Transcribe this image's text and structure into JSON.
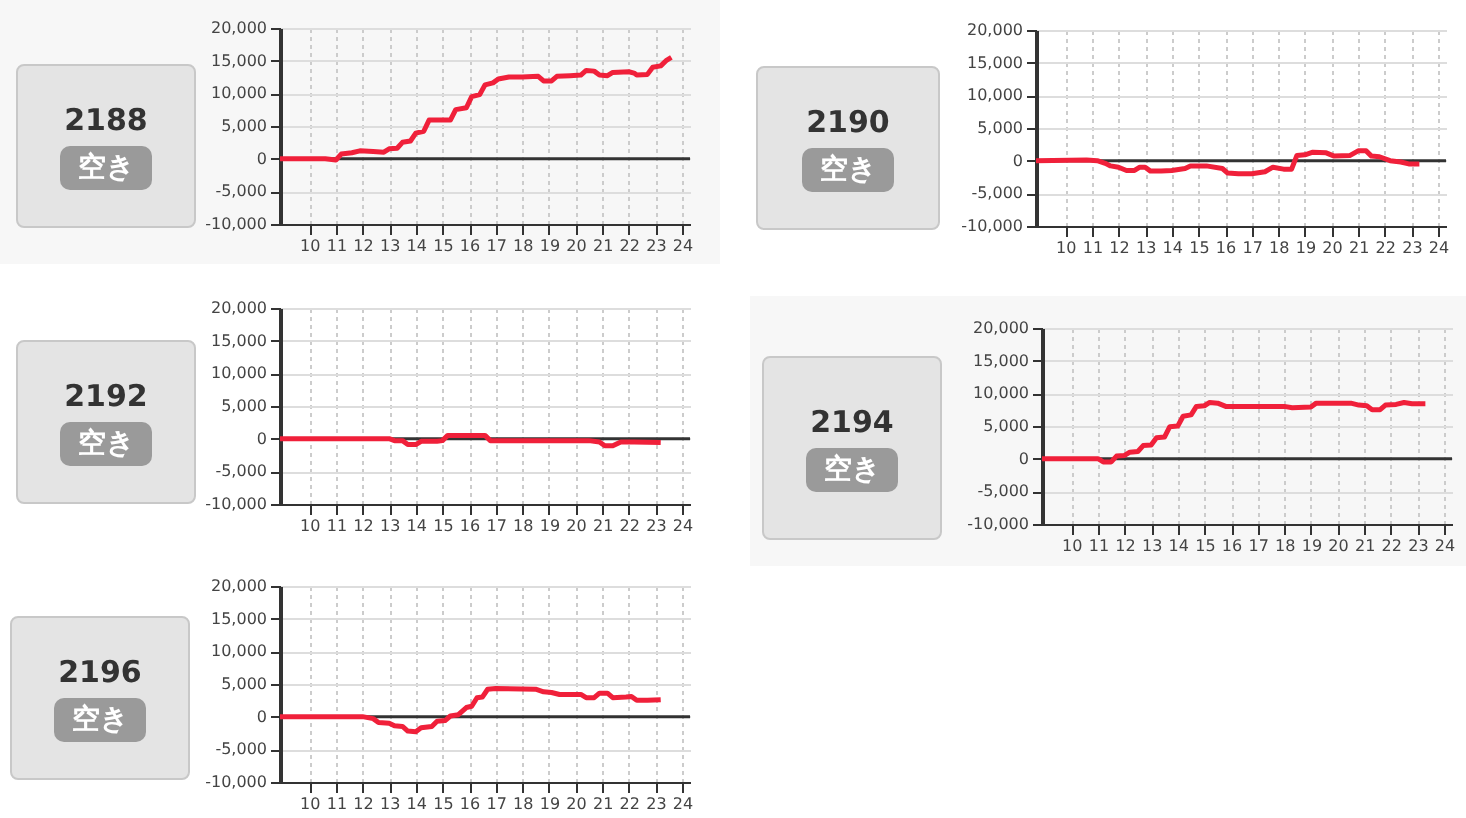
{
  "chart_data": [
    {
      "type": "line",
      "title": "2188",
      "subtitle": "空き",
      "xlim": [
        8.9,
        24.3
      ],
      "xticks": [
        10,
        11,
        12,
        13,
        14,
        15,
        16,
        17,
        18,
        19,
        20,
        21,
        22,
        23,
        24
      ],
      "ylim": [
        -10000,
        20000
      ],
      "yticks": [
        {
          "value": -10000,
          "label": "-10,000"
        },
        {
          "value": -5000,
          "label": "-5,000"
        },
        {
          "value": 0,
          "label": "0"
        },
        {
          "value": 5000,
          "label": "5,000"
        },
        {
          "value": 10000,
          "label": "10,000"
        },
        {
          "value": 15000,
          "label": "15,000"
        },
        {
          "value": 20000,
          "label": "20,000"
        }
      ],
      "grid": true,
      "ref_lines": [
        {
          "axis": "y",
          "value": 0,
          "color": "#333333"
        }
      ],
      "series": [
        {
          "color": "#f0203a",
          "x": [
            8.9,
            10.6,
            11.0,
            11.2,
            11.6,
            11.9,
            12.4,
            12.8,
            13.0,
            13.3,
            13.5,
            13.8,
            14.0,
            14.3,
            14.5,
            15.0,
            15.3,
            15.5,
            15.9,
            16.1,
            16.4,
            16.6,
            16.9,
            17.1,
            17.5,
            18.0,
            18.6,
            18.8,
            19.1,
            19.3,
            19.8,
            20.2,
            20.4,
            20.7,
            20.9,
            21.2,
            21.4,
            22.0,
            22.2,
            22.3,
            22.7,
            22.9,
            23.2,
            23.4,
            23.6
          ],
          "values": [
            0,
            0,
            -200,
            700,
            900,
            1200,
            1100,
            1000,
            1500,
            1600,
            2500,
            2700,
            3900,
            4200,
            5900,
            5900,
            5900,
            7500,
            7800,
            9500,
            9800,
            11300,
            11600,
            12200,
            12500,
            12500,
            12600,
            11900,
            11900,
            12600,
            12700,
            12800,
            13500,
            13400,
            12800,
            12700,
            13200,
            13300,
            13100,
            12800,
            12900,
            14000,
            14200,
            15000,
            15500
          ]
        }
      ]
    },
    {
      "type": "line",
      "title": "2190",
      "subtitle": "空き",
      "xlim": [
        8.9,
        24.3
      ],
      "xticks": [
        10,
        11,
        12,
        13,
        14,
        15,
        16,
        17,
        18,
        19,
        20,
        21,
        22,
        23,
        24
      ],
      "ylim": [
        -10000,
        20000
      ],
      "yticks": [
        {
          "value": -10000,
          "label": "-10,000"
        },
        {
          "value": -5000,
          "label": "-5,000"
        },
        {
          "value": 0,
          "label": "0"
        },
        {
          "value": 5000,
          "label": "5,000"
        },
        {
          "value": 10000,
          "label": "10,000"
        },
        {
          "value": 15000,
          "label": "15,000"
        },
        {
          "value": 20000,
          "label": "20,000"
        }
      ],
      "grid": true,
      "ref_lines": [
        {
          "axis": "y",
          "value": 0,
          "color": "#333333"
        }
      ],
      "series": [
        {
          "color": "#f0203a",
          "x": [
            8.9,
            10.8,
            11.2,
            11.5,
            11.7,
            12.0,
            12.3,
            12.6,
            12.8,
            13.0,
            13.2,
            13.6,
            14.0,
            14.5,
            14.7,
            15.3,
            15.9,
            16.1,
            16.5,
            17.0,
            17.5,
            17.8,
            18.2,
            18.5,
            18.7,
            19.0,
            19.3,
            19.8,
            20.1,
            20.7,
            21.0,
            21.3,
            21.5,
            21.8,
            22.2,
            22.6,
            22.9,
            23.3
          ],
          "values": [
            0,
            100,
            0,
            -400,
            -800,
            -1000,
            -1500,
            -1500,
            -1000,
            -1000,
            -1600,
            -1600,
            -1500,
            -1200,
            -800,
            -800,
            -1200,
            -1900,
            -2000,
            -2000,
            -1700,
            -1000,
            -1300,
            -1300,
            800,
            900,
            1300,
            1200,
            700,
            800,
            1500,
            1500,
            700,
            600,
            0,
            -200,
            -500,
            -500
          ]
        }
      ]
    },
    {
      "type": "line",
      "title": "2192",
      "subtitle": "空き",
      "xlim": [
        8.9,
        24.3
      ],
      "xticks": [
        10,
        11,
        12,
        13,
        14,
        15,
        16,
        17,
        18,
        19,
        20,
        21,
        22,
        23,
        24
      ],
      "ylim": [
        -10000,
        20000
      ],
      "yticks": [
        {
          "value": -10000,
          "label": "-10,000"
        },
        {
          "value": -5000,
          "label": "-5,000"
        },
        {
          "value": 0,
          "label": "0"
        },
        {
          "value": 5000,
          "label": "5,000"
        },
        {
          "value": 10000,
          "label": "10,000"
        },
        {
          "value": 15000,
          "label": "15,000"
        },
        {
          "value": 20000,
          "label": "20,000"
        }
      ],
      "grid": true,
      "ref_lines": [
        {
          "axis": "y",
          "value": 0,
          "color": "#333333"
        }
      ],
      "series": [
        {
          "color": "#f0203a",
          "x": [
            8.9,
            13.0,
            13.2,
            13.5,
            13.7,
            14.0,
            14.2,
            14.8,
            15.0,
            15.2,
            16.0,
            16.6,
            16.8,
            17.5,
            20.5,
            20.9,
            21.1,
            21.4,
            21.7,
            22.2,
            23.2
          ],
          "values": [
            0,
            0,
            -300,
            -300,
            -900,
            -900,
            -400,
            -400,
            -300,
            500,
            500,
            500,
            -300,
            -300,
            -300,
            -500,
            -1100,
            -1100,
            -500,
            -500,
            -600
          ]
        }
      ]
    },
    {
      "type": "line",
      "title": "2194",
      "subtitle": "空き",
      "xlim": [
        8.9,
        24.3
      ],
      "xticks": [
        10,
        11,
        12,
        13,
        14,
        15,
        16,
        17,
        18,
        19,
        20,
        21,
        22,
        23,
        24
      ],
      "ylim": [
        -10000,
        20000
      ],
      "yticks": [
        {
          "value": -10000,
          "label": "-10,000"
        },
        {
          "value": -5000,
          "label": "-5,000"
        },
        {
          "value": 0,
          "label": "0"
        },
        {
          "value": 5000,
          "label": "5,000"
        },
        {
          "value": 10000,
          "label": "10,000"
        },
        {
          "value": 15000,
          "label": "15,000"
        },
        {
          "value": 20000,
          "label": "20,000"
        }
      ],
      "grid": true,
      "ref_lines": [
        {
          "axis": "y",
          "value": 0,
          "color": "#333333"
        }
      ],
      "series": [
        {
          "color": "#f0203a",
          "x": [
            8.9,
            11.0,
            11.2,
            11.5,
            11.7,
            12.0,
            12.2,
            12.5,
            12.7,
            13.0,
            13.2,
            13.5,
            13.7,
            14.0,
            14.2,
            14.5,
            14.7,
            15.0,
            15.2,
            15.5,
            15.8,
            17.0,
            18.0,
            18.3,
            19.0,
            19.2,
            20.5,
            20.8,
            21.1,
            21.3,
            21.6,
            21.8,
            22.2,
            22.5,
            22.8,
            23.3
          ],
          "values": [
            0,
            0,
            -500,
            -500,
            400,
            500,
            1000,
            1100,
            2000,
            2100,
            3200,
            3300,
            4900,
            5000,
            6500,
            6700,
            8000,
            8100,
            8600,
            8500,
            8000,
            8000,
            8000,
            7800,
            7900,
            8500,
            8500,
            8200,
            8100,
            7500,
            7500,
            8200,
            8300,
            8600,
            8400,
            8400
          ]
        }
      ]
    },
    {
      "type": "line",
      "title": "2196",
      "subtitle": "空き",
      "xlim": [
        8.9,
        24.3
      ],
      "xticks": [
        10,
        11,
        12,
        13,
        14,
        15,
        16,
        17,
        18,
        19,
        20,
        21,
        22,
        23,
        24
      ],
      "ylim": [
        -10000,
        20000
      ],
      "yticks": [
        {
          "value": -10000,
          "label": "-10,000"
        },
        {
          "value": -5000,
          "label": "-5,000"
        },
        {
          "value": 0,
          "label": "0"
        },
        {
          "value": 5000,
          "label": "5,000"
        },
        {
          "value": 10000,
          "label": "10,000"
        },
        {
          "value": 15000,
          "label": "15,000"
        },
        {
          "value": 20000,
          "label": "20,000"
        }
      ],
      "grid": true,
      "ref_lines": [
        {
          "axis": "y",
          "value": 0,
          "color": "#333333"
        }
      ],
      "series": [
        {
          "color": "#f0203a",
          "x": [
            8.9,
            12.0,
            12.4,
            12.6,
            13.0,
            13.2,
            13.5,
            13.7,
            14.0,
            14.2,
            14.6,
            14.8,
            15.1,
            15.3,
            15.6,
            15.9,
            16.1,
            16.3,
            16.5,
            16.7,
            17.0,
            18.5,
            18.8,
            19.1,
            19.4,
            20.2,
            20.4,
            20.7,
            20.9,
            21.2,
            21.4,
            21.9,
            22.1,
            22.3,
            22.7,
            23.2
          ],
          "values": [
            0,
            0,
            -300,
            -900,
            -1000,
            -1400,
            -1500,
            -2200,
            -2300,
            -1700,
            -1500,
            -700,
            -600,
            100,
            300,
            1400,
            1600,
            2900,
            3000,
            4200,
            4300,
            4200,
            3800,
            3700,
            3400,
            3400,
            2900,
            2900,
            3600,
            3600,
            2900,
            3000,
            3100,
            2500,
            2500,
            2600
          ]
        }
      ]
    }
  ]
}
